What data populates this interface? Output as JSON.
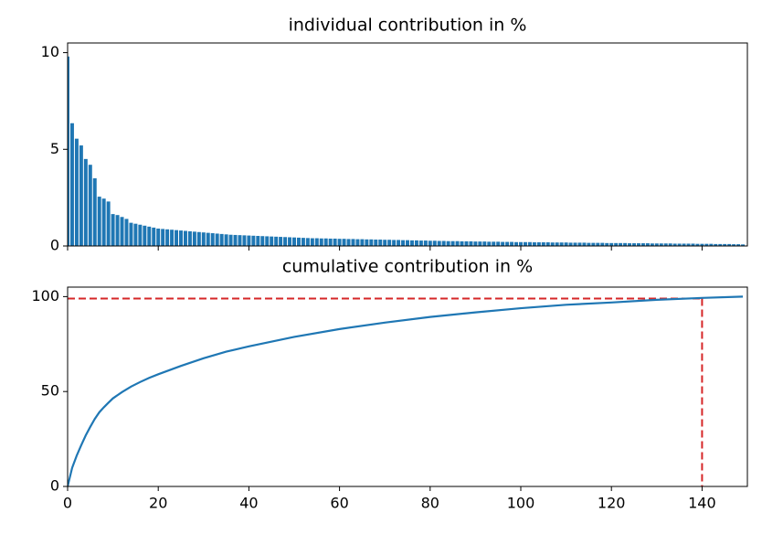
{
  "chart_data": [
    {
      "type": "bar",
      "title": "individual contribution in %",
      "color": "#1f77b4",
      "x": [
        0,
        1,
        2,
        3,
        4,
        5,
        6,
        7,
        8,
        9,
        10,
        11,
        12,
        13,
        14,
        15,
        16,
        17,
        18,
        19,
        20,
        21,
        22,
        23,
        24,
        25,
        26,
        27,
        28,
        29,
        30,
        31,
        32,
        33,
        34,
        35,
        36,
        37,
        38,
        39,
        40,
        41,
        42,
        43,
        44,
        45,
        46,
        47,
        48,
        49,
        50,
        51,
        52,
        53,
        54,
        55,
        56,
        57,
        58,
        59,
        60,
        61,
        62,
        63,
        64,
        65,
        66,
        67,
        68,
        69,
        70,
        71,
        72,
        73,
        74,
        75,
        76,
        77,
        78,
        79,
        80,
        81,
        82,
        83,
        84,
        85,
        86,
        87,
        88,
        89,
        90,
        91,
        92,
        93,
        94,
        95,
        96,
        97,
        98,
        99,
        100,
        101,
        102,
        103,
        104,
        105,
        106,
        107,
        108,
        109,
        110,
        111,
        112,
        113,
        114,
        115,
        116,
        117,
        118,
        119,
        120,
        121,
        122,
        123,
        124,
        125,
        126,
        127,
        128,
        129,
        130,
        131,
        132,
        133,
        134,
        135,
        136,
        137,
        138,
        139,
        140,
        141,
        142,
        143,
        144,
        145,
        146,
        147,
        148,
        149
      ],
      "values": [
        9.8,
        6.35,
        5.55,
        5.2,
        4.5,
        4.2,
        3.5,
        2.55,
        2.45,
        2.3,
        1.65,
        1.6,
        1.5,
        1.4,
        1.2,
        1.15,
        1.1,
        1.05,
        1.0,
        0.95,
        0.9,
        0.88,
        0.86,
        0.84,
        0.82,
        0.8,
        0.78,
        0.76,
        0.74,
        0.72,
        0.7,
        0.68,
        0.66,
        0.64,
        0.62,
        0.6,
        0.58,
        0.57,
        0.56,
        0.55,
        0.54,
        0.53,
        0.52,
        0.51,
        0.5,
        0.49,
        0.48,
        0.47,
        0.46,
        0.45,
        0.44,
        0.43,
        0.42,
        0.41,
        0.4,
        0.4,
        0.39,
        0.39,
        0.38,
        0.38,
        0.37,
        0.37,
        0.36,
        0.36,
        0.35,
        0.35,
        0.34,
        0.34,
        0.33,
        0.33,
        0.32,
        0.32,
        0.31,
        0.31,
        0.3,
        0.3,
        0.29,
        0.29,
        0.28,
        0.28,
        0.27,
        0.27,
        0.26,
        0.26,
        0.25,
        0.25,
        0.25,
        0.24,
        0.24,
        0.24,
        0.23,
        0.23,
        0.23,
        0.22,
        0.22,
        0.22,
        0.21,
        0.21,
        0.21,
        0.2,
        0.2,
        0.2,
        0.2,
        0.19,
        0.19,
        0.19,
        0.19,
        0.18,
        0.18,
        0.18,
        0.18,
        0.17,
        0.17,
        0.17,
        0.17,
        0.16,
        0.16,
        0.16,
        0.16,
        0.15,
        0.15,
        0.15,
        0.15,
        0.15,
        0.14,
        0.14,
        0.14,
        0.14,
        0.14,
        0.13,
        0.13,
        0.13,
        0.13,
        0.13,
        0.12,
        0.12,
        0.12,
        0.12,
        0.12,
        0.11,
        0.11,
        0.11,
        0.11,
        0.1,
        0.1,
        0.1,
        0.1,
        0.09,
        0.09,
        0.08
      ],
      "xlim": [
        0,
        150
      ],
      "xticks": [
        0,
        20,
        40,
        60,
        80,
        100,
        120,
        140
      ],
      "ylim": [
        0,
        10.5
      ],
      "yticks": [
        0,
        5,
        10
      ]
    },
    {
      "type": "line",
      "title": "cumulative contribution in %",
      "color": "#1f77b4",
      "x": [
        0,
        1,
        2,
        3,
        4,
        5,
        6,
        7,
        8,
        9,
        10,
        12,
        14,
        16,
        18,
        20,
        25,
        30,
        35,
        40,
        50,
        60,
        70,
        80,
        90,
        100,
        110,
        120,
        130,
        140,
        149
      ],
      "values": [
        0,
        9.8,
        16.2,
        21.7,
        26.9,
        31.4,
        35.6,
        39.1,
        41.7,
        44.1,
        46.4,
        49.7,
        52.6,
        55.0,
        57.2,
        59.1,
        63.5,
        67.5,
        71.0,
        73.8,
        78.8,
        82.9,
        86.3,
        89.3,
        91.7,
        93.9,
        95.7,
        96.9,
        98.3,
        99.3,
        100
      ],
      "threshold": {
        "x": 140,
        "y": 99,
        "color": "#d62728"
      },
      "xlim": [
        0,
        150
      ],
      "xticks": [
        0,
        20,
        40,
        60,
        80,
        100,
        120,
        140
      ],
      "ylim": [
        0,
        105
      ],
      "yticks": [
        0,
        50,
        100
      ]
    }
  ]
}
